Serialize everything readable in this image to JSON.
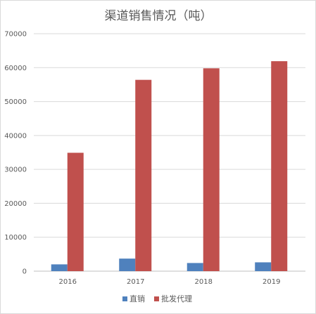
{
  "chart_data": {
    "type": "bar",
    "title": "渠道销售情况（吨）",
    "categories": [
      "2016",
      "2017",
      "2018",
      "2019"
    ],
    "series": [
      {
        "name": "直销",
        "values": [
          2000,
          3700,
          2400,
          2600
        ],
        "color": "#4f81bd"
      },
      {
        "name": "批发代理",
        "values": [
          34900,
          56400,
          59800,
          61900
        ],
        "color": "#c0504d"
      }
    ],
    "ylim": [
      0,
      70000
    ],
    "yticks": [
      0,
      10000,
      20000,
      30000,
      40000,
      50000,
      60000,
      70000
    ],
    "grid": true,
    "legend_position": "bottom"
  }
}
